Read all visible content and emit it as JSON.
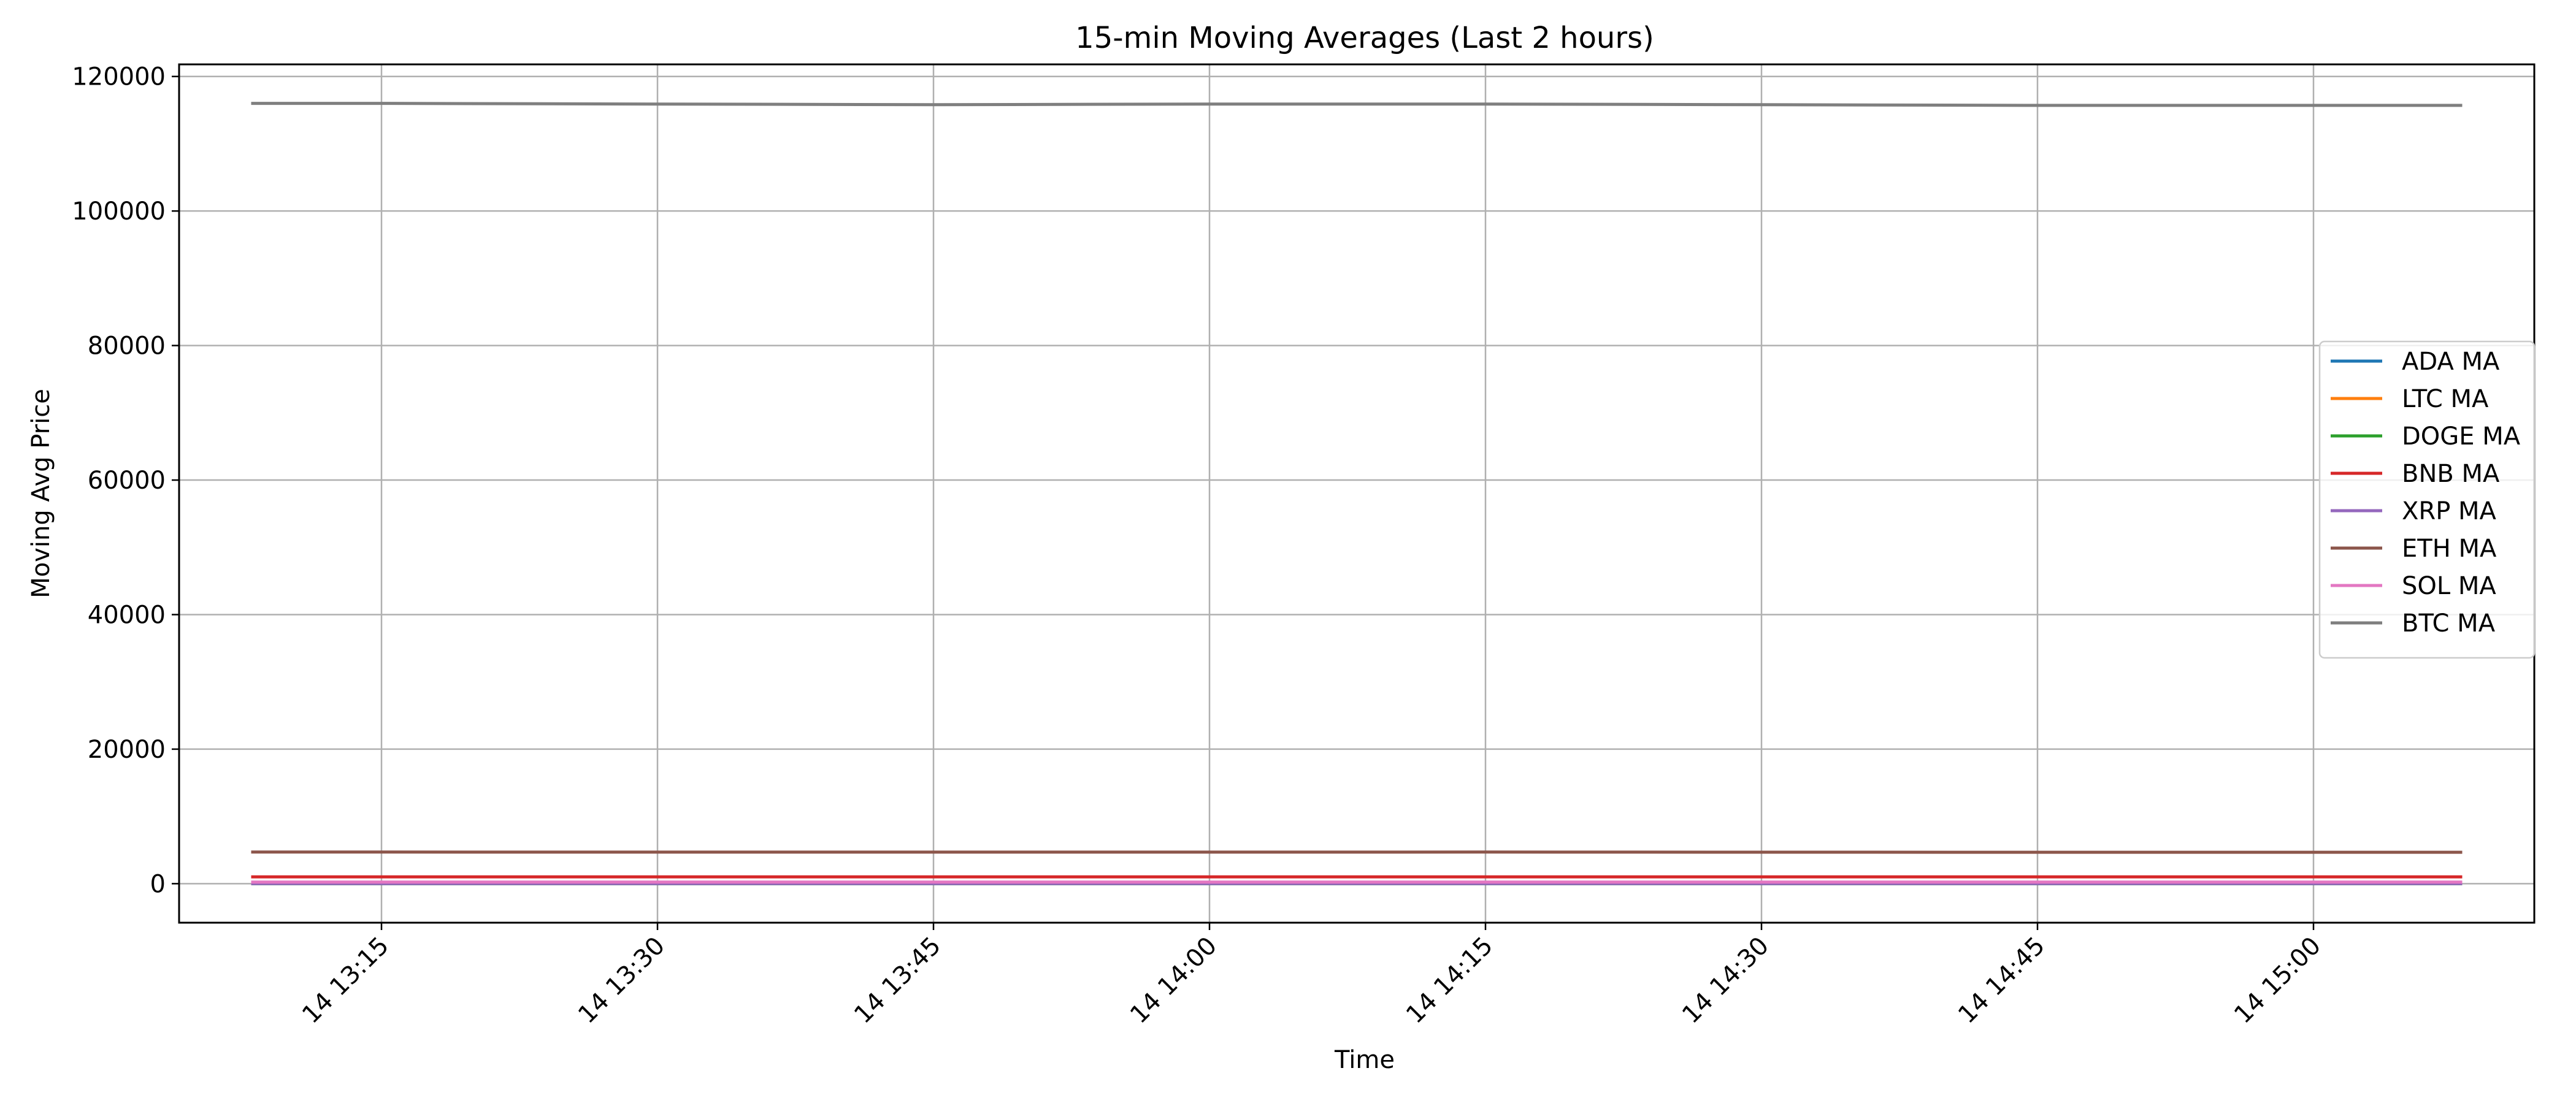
{
  "chart_data": {
    "type": "line",
    "title": "15-min Moving Averages (Last 2 hours)",
    "xlabel": "Time",
    "ylabel": "Moving Avg Price",
    "x_ticks": [
      "14 13:15",
      "14 13:30",
      "14 13:45",
      "14 14:00",
      "14 14:15",
      "14 14:30",
      "14 14:45",
      "14 15:00"
    ],
    "x_tick_values": [
      "13:15",
      "13:30",
      "13:45",
      "14:00",
      "14:15",
      "14:30",
      "14:45",
      "15:00"
    ],
    "xlim": [
      "13:04",
      "15:12"
    ],
    "x": [
      "13:08",
      "13:15",
      "13:30",
      "13:45",
      "14:00",
      "14:15",
      "14:30",
      "14:45",
      "15:00",
      "15:08"
    ],
    "yticks": [
      0,
      20000,
      40000,
      60000,
      80000,
      100000,
      120000
    ],
    "ylim": [
      -5800,
      121800
    ],
    "grid": true,
    "legend_position": "center-right",
    "series": [
      {
        "name": "ADA MA",
        "color": "#1f77b4",
        "values": [
          0.8,
          0.8,
          0.8,
          0.8,
          0.8,
          0.8,
          0.8,
          0.8,
          0.8,
          0.8
        ]
      },
      {
        "name": "LTC MA",
        "color": "#ff7f0e",
        "values": [
          118,
          118,
          118,
          118,
          118,
          118,
          118,
          118,
          118,
          118
        ]
      },
      {
        "name": "DOGE MA",
        "color": "#2ca02c",
        "values": [
          0.22,
          0.22,
          0.22,
          0.22,
          0.22,
          0.22,
          0.22,
          0.22,
          0.22,
          0.22
        ]
      },
      {
        "name": "BNB MA",
        "color": "#d62728",
        "values": [
          1020,
          1020,
          1020,
          1020,
          1020,
          1020,
          1020,
          1020,
          1020,
          1020
        ]
      },
      {
        "name": "XRP MA",
        "color": "#9467bd",
        "values": [
          3.0,
          3.0,
          3.0,
          3.0,
          3.0,
          3.0,
          3.0,
          3.0,
          3.0,
          3.0
        ]
      },
      {
        "name": "ETH MA",
        "color": "#8c564b",
        "values": [
          4700,
          4700,
          4690,
          4690,
          4690,
          4700,
          4680,
          4670,
          4670,
          4670
        ]
      },
      {
        "name": "SOL MA",
        "color": "#e377c2",
        "values": [
          238,
          238,
          238,
          238,
          238,
          238,
          238,
          238,
          238,
          238
        ]
      },
      {
        "name": "BTC MA",
        "color": "#7f7f7f",
        "values": [
          116000,
          116000,
          115900,
          115800,
          115900,
          115900,
          115800,
          115700,
          115700,
          115700
        ]
      }
    ]
  }
}
